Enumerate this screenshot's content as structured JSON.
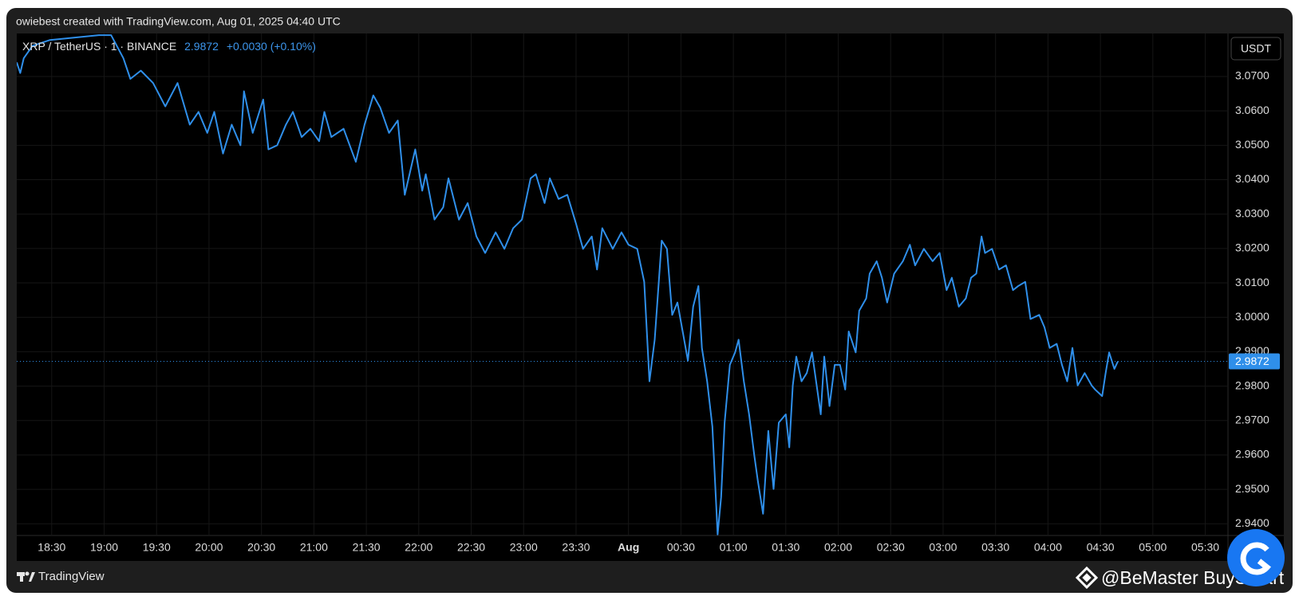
{
  "header": "owiebest created with TradingView.com, Aug 01, 2025 04:40 UTC",
  "chart_data": {
    "type": "line",
    "title": "XRP / TetherUS · 1 · BINANCE",
    "last_value": 2.9872,
    "change": "+0.0030 (+0.10%)",
    "currency": "USDT",
    "color": "#2f8fea",
    "x": [
      "18:10",
      "18:12",
      "18:14",
      "18:19",
      "18:29",
      "18:57",
      "19:04",
      "19:11",
      "19:15",
      "19:21",
      "19:28",
      "19:35",
      "19:42",
      "19:49",
      "19:54",
      "19:59",
      "20:03",
      "20:08",
      "20:13",
      "20:18",
      "20:20",
      "20:25",
      "20:31",
      "20:34",
      "20:39",
      "20:44",
      "20:48",
      "20:53",
      "20:58",
      "21:03",
      "21:06",
      "21:10",
      "21:17",
      "21:24",
      "21:29",
      "21:34",
      "21:38",
      "21:43",
      "21:48",
      "21:52",
      "21:58",
      "22:02",
      "22:04",
      "22:09",
      "22:14",
      "22:17",
      "22:23",
      "22:28",
      "22:33",
      "22:38",
      "22:44",
      "22:49",
      "22:54",
      "22:59",
      "23:04",
      "23:07",
      "23:12",
      "23:15",
      "23:20",
      "23:25",
      "23:30",
      "23:34",
      "23:39",
      "23:42",
      "23:45",
      "23:51",
      "23:56",
      "00:00",
      "00:05",
      "00:09",
      "00:12",
      "00:15",
      "00:19",
      "00:22",
      "00:25",
      "00:28",
      "00:31",
      "00:34",
      "00:37",
      "00:40",
      "00:42",
      "00:45",
      "00:48",
      "00:51",
      "00:53",
      "00:55",
      "00:58",
      "01:01",
      "01:03",
      "01:06",
      "01:09",
      "01:12",
      "01:14",
      "01:17",
      "01:20",
      "01:23",
      "01:26",
      "01:30",
      "01:32",
      "01:34",
      "01:36",
      "01:39",
      "01:42",
      "01:45",
      "01:48",
      "01:50",
      "01:52",
      "01:55",
      "01:58",
      "02:01",
      "02:04",
      "02:06",
      "02:10",
      "02:12",
      "02:16",
      "02:18",
      "02:22",
      "02:25",
      "02:28",
      "02:32",
      "02:37",
      "02:41",
      "02:44",
      "02:49",
      "02:54",
      "02:58",
      "03:02",
      "03:05",
      "03:09",
      "03:13",
      "03:16",
      "03:19",
      "03:22",
      "03:24",
      "03:28",
      "03:32",
      "03:36",
      "03:40",
      "03:43",
      "03:47",
      "03:50",
      "03:55",
      "03:58",
      "04:01",
      "04:05",
      "04:08",
      "04:11",
      "04:14",
      "04:17",
      "04:21",
      "04:25",
      "04:27",
      "04:31",
      "04:33",
      "04:35",
      "04:38",
      "04:40"
    ],
    "values": [
      3.0741,
      3.071,
      3.0753,
      3.0789,
      3.0806,
      3.082,
      3.082,
      3.0753,
      3.0693,
      3.0717,
      3.0681,
      3.0613,
      3.0681,
      3.056,
      3.0597,
      3.0536,
      3.0597,
      3.0476,
      3.056,
      3.05,
      3.0657,
      3.0536,
      3.0633,
      3.0488,
      3.05,
      3.056,
      3.0597,
      3.0524,
      3.0548,
      3.0512,
      3.0597,
      3.0524,
      3.0548,
      3.0452,
      3.056,
      3.0645,
      3.0609,
      3.0536,
      3.0572,
      3.0356,
      3.0488,
      3.0368,
      3.0416,
      3.0284,
      3.032,
      3.0404,
      3.0284,
      3.0332,
      3.0235,
      3.0187,
      3.0247,
      3.0199,
      3.0259,
      3.0284,
      3.0404,
      3.0416,
      3.0332,
      3.0404,
      3.0344,
      3.0356,
      3.0272,
      3.0199,
      3.0235,
      3.0139,
      3.0259,
      3.0199,
      3.0247,
      3.0211,
      3.0199,
      3.0103,
      2.9814,
      2.9935,
      3.0223,
      3.0199,
      3.0007,
      3.0043,
      2.9959,
      2.9874,
      3.0031,
      3.0091,
      2.9911,
      2.9814,
      2.9682,
      2.9369,
      2.9477,
      2.9694,
      2.9862,
      2.9898,
      2.9935,
      2.9814,
      2.9718,
      2.9598,
      2.9525,
      2.9429,
      2.967,
      2.9501,
      2.9694,
      2.9718,
      2.9622,
      2.9802,
      2.9886,
      2.9814,
      2.9838,
      2.9898,
      2.979,
      2.9718,
      2.9886,
      2.9742,
      2.9862,
      2.9862,
      2.979,
      2.9959,
      2.9898,
      3.0019,
      3.0055,
      3.0127,
      3.0163,
      3.0115,
      3.0043,
      3.0127,
      3.0163,
      3.0211,
      3.0151,
      3.0199,
      3.0163,
      3.0187,
      3.0079,
      3.0115,
      3.0031,
      3.0055,
      3.0115,
      3.0127,
      3.0235,
      3.0187,
      3.0199,
      3.0139,
      3.0151,
      3.0079,
      3.0091,
      3.0103,
      2.9995,
      3.0007,
      2.9971,
      2.9911,
      2.9923,
      2.9862,
      2.9814,
      2.9911,
      2.9802,
      2.9838,
      2.9802,
      2.979,
      2.9771,
      2.9838,
      2.9898,
      2.985,
      2.9872
    ],
    "xlim": [
      "18:10",
      "05:43"
    ],
    "xticks": [
      "18:30",
      "19:00",
      "19:30",
      "20:00",
      "20:30",
      "21:00",
      "21:30",
      "22:00",
      "22:30",
      "23:00",
      "23:30",
      {
        "value": "00:00",
        "label": "Aug"
      },
      "00:30",
      "01:00",
      "01:30",
      "02:00",
      "02:30",
      "03:00",
      "03:30",
      "04:00",
      "04:30",
      "05:00",
      "05:30"
    ],
    "ylim": [
      2.9366,
      3.0825
    ],
    "yticks": [
      {
        "value": 2.94,
        "label": "2.9400"
      },
      {
        "value": 2.95,
        "label": "2.9500"
      },
      {
        "value": 2.96,
        "label": "2.9600"
      },
      {
        "value": 2.97,
        "label": "2.9700"
      },
      {
        "value": 2.98,
        "label": "2.9800"
      },
      {
        "value": 2.99,
        "label": "2.9900"
      },
      {
        "value": 3.0,
        "label": "3.0000"
      },
      {
        "value": 3.01,
        "label": "3.0100"
      },
      {
        "value": 3.02,
        "label": "3.0200"
      },
      {
        "value": 3.03,
        "label": "3.0300"
      },
      {
        "value": 3.04,
        "label": "3.0400"
      },
      {
        "value": 3.05,
        "label": "3.0500"
      },
      {
        "value": 3.06,
        "label": "3.0600"
      },
      {
        "value": 3.07,
        "label": "3.0700"
      }
    ],
    "grid": true
  },
  "footer": {
    "brand": "TradingView",
    "watermark": "@BeMaster BuySmart"
  }
}
